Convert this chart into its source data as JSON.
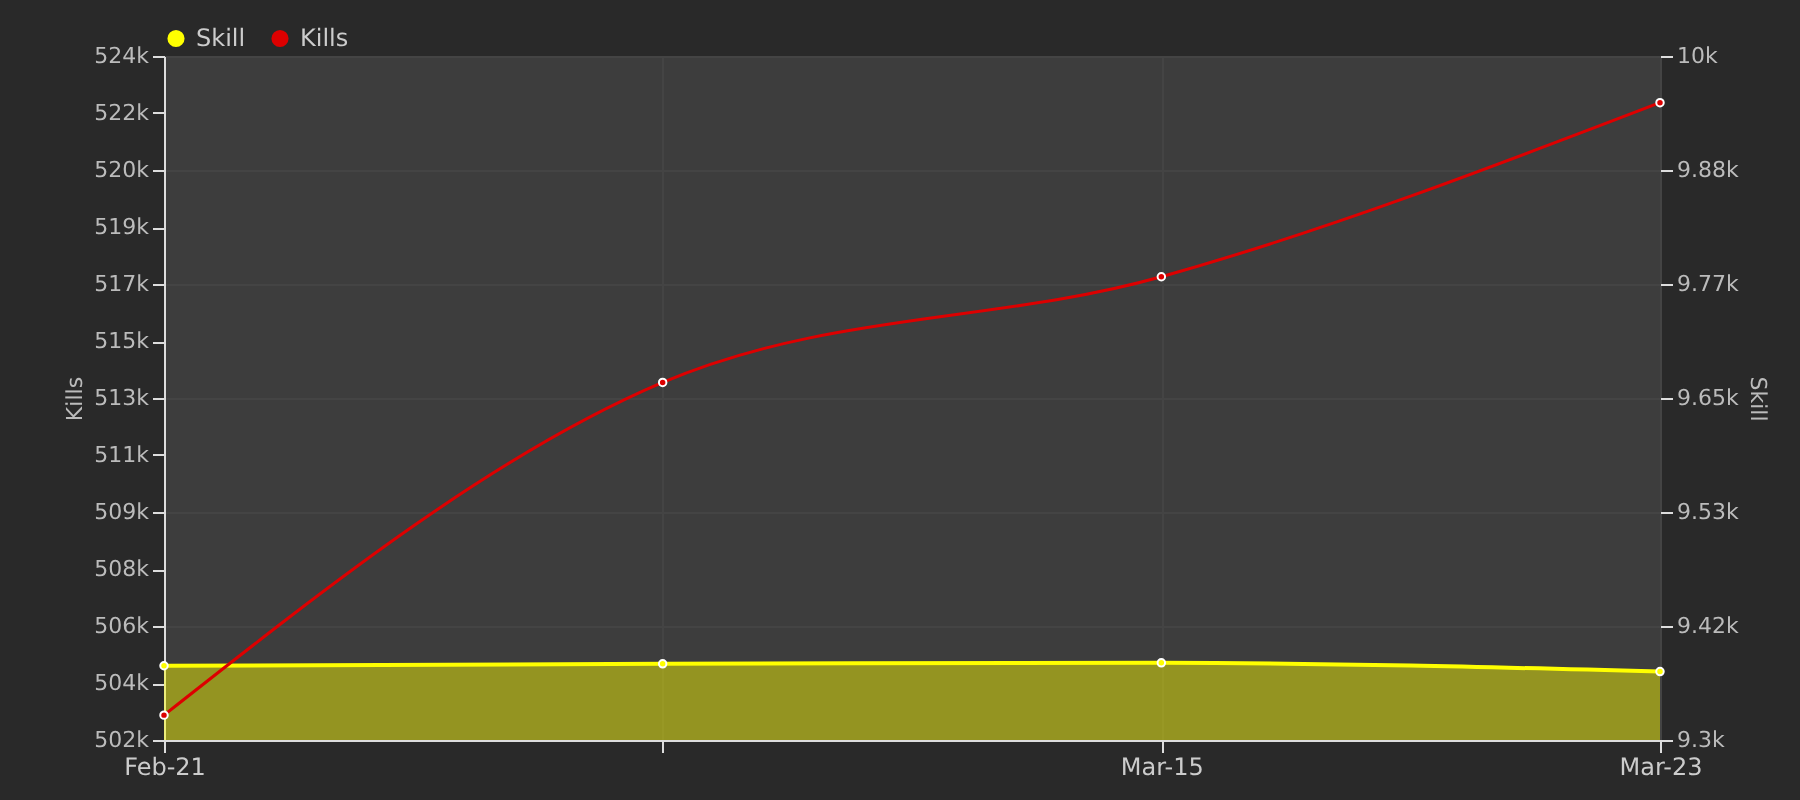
{
  "chart_data": {
    "type": "line",
    "categories": [
      "Feb-21",
      null,
      "Mar-15",
      "Mar-23"
    ],
    "series": [
      {
        "name": "Skill",
        "type": "area",
        "axis": "y2",
        "color": "#ffff00",
        "values": [
          9376,
          9378,
          9379,
          9370
        ]
      },
      {
        "name": "Kills",
        "type": "line",
        "color": "#dd0000",
        "values": [
          502800,
          513500,
          516900,
          522500
        ]
      }
    ],
    "ylabel": "Kills",
    "y2label": "Skill",
    "ylim": [
      502000,
      524000
    ],
    "yticks": [
      {
        "value": 502000,
        "label": "502k"
      },
      {
        "value": 503833.3,
        "label": "504k"
      },
      {
        "value": 505666.7,
        "label": "506k"
      },
      {
        "value": 507500,
        "label": "508k"
      },
      {
        "value": 509333.3,
        "label": "509k"
      },
      {
        "value": 511166.7,
        "label": "511k"
      },
      {
        "value": 513000,
        "label": "513k"
      },
      {
        "value": 514833.3,
        "label": "515k"
      },
      {
        "value": 516666.7,
        "label": "517k"
      },
      {
        "value": 518500,
        "label": "519k"
      },
      {
        "value": 520333.3,
        "label": "520k"
      },
      {
        "value": 522166.7,
        "label": "522k"
      },
      {
        "value": 524000,
        "label": "524k"
      }
    ],
    "y2lim": [
      9300,
      10000
    ],
    "y2ticks": [
      {
        "value": 9300,
        "label": "9.3k"
      },
      {
        "value": 9416.7,
        "label": "9.42k"
      },
      {
        "value": 9533.3,
        "label": "9.53k"
      },
      {
        "value": 9650,
        "label": "9.65k"
      },
      {
        "value": 9766.7,
        "label": "9.77k"
      },
      {
        "value": 9883.3,
        "label": "9.88k"
      },
      {
        "value": 10000,
        "label": "10k"
      }
    ],
    "grid": true,
    "legend": "top",
    "marker": "circle",
    "line_style": "solid"
  }
}
